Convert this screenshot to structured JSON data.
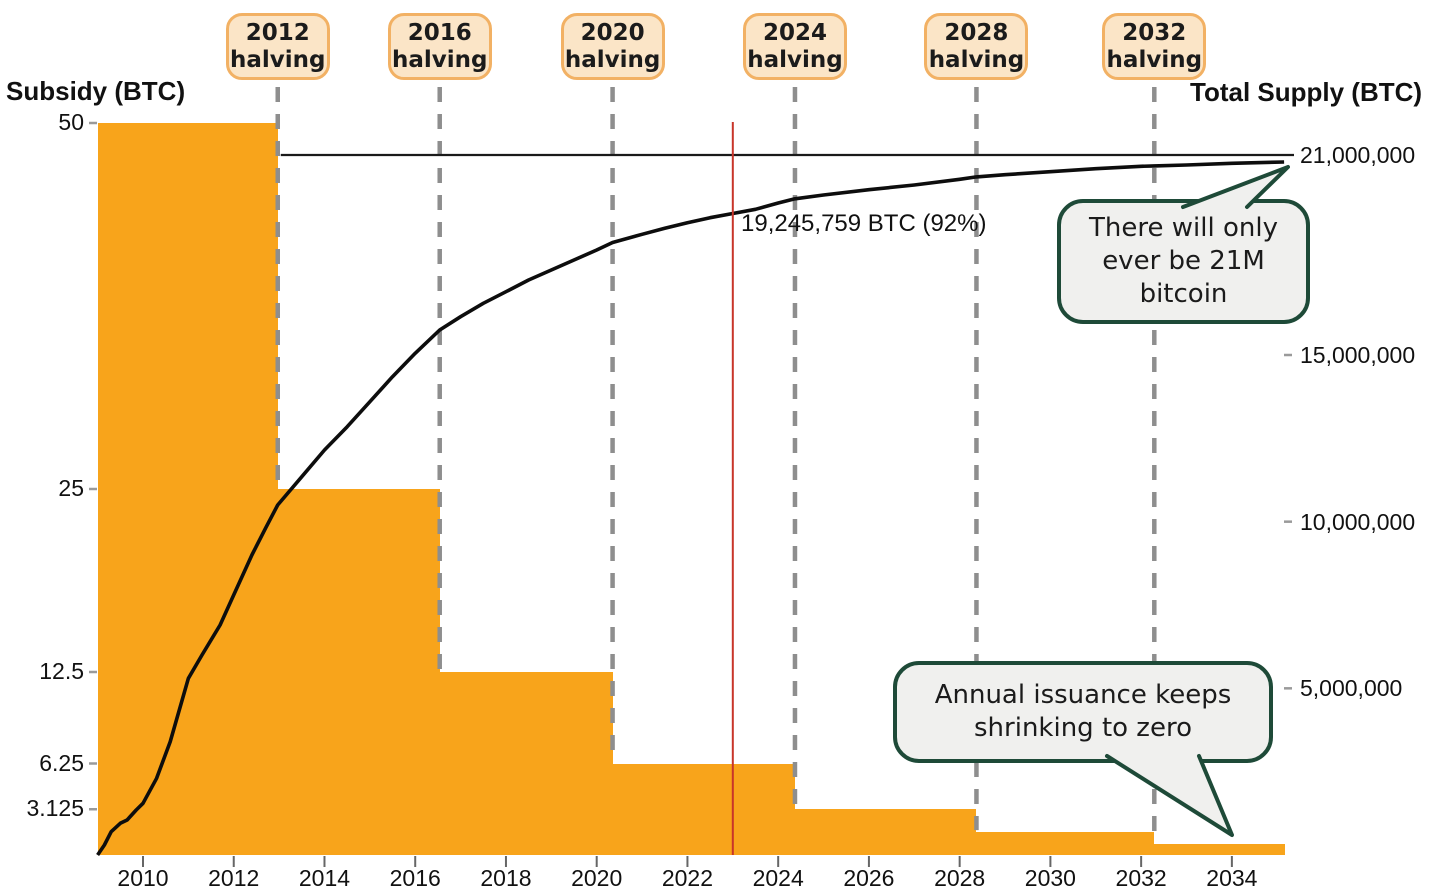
{
  "titles": {
    "left_axis": "Subsidy (BTC)",
    "right_axis": "Total Supply (BTC)"
  },
  "colors": {
    "bar": "#f8a41b",
    "pill_fill": "#fbe5c7",
    "pill_border": "#f2b164",
    "dashed_line": "#8e8e8e",
    "red_line": "#c8352a",
    "supply_curve": "#0d0d0d",
    "max_line": "#1a1a1a",
    "callout_fill": "#f0f0ee",
    "callout_border": "#1e4a38",
    "text": "#111111"
  },
  "callouts": [
    {
      "lines": [
        "There will only",
        "ever be 21M",
        "bitcoin"
      ]
    },
    {
      "lines": [
        "Annual issuance keeps",
        "shrinking to zero"
      ]
    }
  ],
  "chart_data": {
    "type": "bar+line",
    "title": "",
    "x_axis": {
      "ticks": [
        2010,
        2012,
        2014,
        2016,
        2018,
        2020,
        2022,
        2024,
        2026,
        2028,
        2030,
        2032,
        2034
      ],
      "range": [
        2009,
        2035.2
      ],
      "grid": false
    },
    "left_axis": {
      "label": "Subsidy (BTC)",
      "ticks": [
        "50",
        "25",
        "12.5",
        "6.25",
        "3.125"
      ],
      "tick_values": [
        50,
        25,
        12.5,
        6.25,
        3.125
      ],
      "range": [
        0,
        50
      ]
    },
    "right_axis": {
      "label": "Total Supply (BTC)",
      "ticks": [
        {
          "label": "21,000,000",
          "value_m": 21
        },
        {
          "label": "15,000,000",
          "value_m": 15
        },
        {
          "label": "10,000,000",
          "value_m": 10
        },
        {
          "label": "5,000,000",
          "value_m": 5
        }
      ],
      "range_m": [
        0,
        21
      ],
      "max_supply_line_m": 21
    },
    "subsidy_eras": [
      {
        "start_year": 2009.0,
        "end_year": 2012.97,
        "subsidy_btc": 50
      },
      {
        "start_year": 2012.97,
        "end_year": 2016.54,
        "subsidy_btc": 25
      },
      {
        "start_year": 2016.54,
        "end_year": 2020.35,
        "subsidy_btc": 12.5
      },
      {
        "start_year": 2020.35,
        "end_year": 2024.37,
        "subsidy_btc": 6.25
      },
      {
        "start_year": 2024.37,
        "end_year": 2028.37,
        "subsidy_btc": 3.125
      },
      {
        "start_year": 2028.37,
        "end_year": 2032.29,
        "subsidy_btc": 1.5625
      },
      {
        "start_year": 2032.29,
        "end_year": 2035.17,
        "subsidy_btc": 0.78125
      }
    ],
    "halvings": [
      {
        "year": "2012",
        "word": "halving",
        "x_year": 2012.97
      },
      {
        "year": "2016",
        "word": "halving",
        "x_year": 2016.54
      },
      {
        "year": "2020",
        "word": "halving",
        "x_year": 2020.35
      },
      {
        "year": "2024",
        "word": "halving",
        "x_year": 2024.37
      },
      {
        "year": "2028",
        "word": "halving",
        "x_year": 2028.37
      },
      {
        "year": "2032",
        "word": "halving",
        "x_year": 2032.29
      }
    ],
    "current_marker": {
      "x_year": 2023.0,
      "label": "19,245,759 BTC (92%)",
      "supply_btc": 19245759,
      "supply_m": 19.246
    },
    "supply_curve_year_mbtc": [
      [
        2009.0,
        0
      ],
      [
        2009.15,
        0.3
      ],
      [
        2009.3,
        0.7
      ],
      [
        2009.5,
        0.95
      ],
      [
        2009.65,
        1.05
      ],
      [
        2009.85,
        1.35
      ],
      [
        2010.0,
        1.55
      ],
      [
        2010.3,
        2.3
      ],
      [
        2010.6,
        3.4
      ],
      [
        2011.0,
        5.3
      ],
      [
        2011.3,
        6.0
      ],
      [
        2011.7,
        6.9
      ],
      [
        2012.0,
        7.8
      ],
      [
        2012.4,
        9.0
      ],
      [
        2012.7,
        9.8
      ],
      [
        2012.97,
        10.5
      ],
      [
        2013.5,
        11.35
      ],
      [
        2014.0,
        12.15
      ],
      [
        2014.5,
        12.85
      ],
      [
        2015.0,
        13.6
      ],
      [
        2015.5,
        14.35
      ],
      [
        2016.0,
        15.05
      ],
      [
        2016.54,
        15.75
      ],
      [
        2017.0,
        16.15
      ],
      [
        2017.5,
        16.55
      ],
      [
        2018.0,
        16.9
      ],
      [
        2018.5,
        17.25
      ],
      [
        2019.0,
        17.55
      ],
      [
        2019.5,
        17.85
      ],
      [
        2020.0,
        18.15
      ],
      [
        2020.35,
        18.375
      ],
      [
        2021.0,
        18.62
      ],
      [
        2021.5,
        18.8
      ],
      [
        2022.0,
        18.97
      ],
      [
        2022.5,
        19.12
      ],
      [
        2023.0,
        19.246
      ],
      [
        2023.5,
        19.37
      ],
      [
        2024.0,
        19.56
      ],
      [
        2024.37,
        19.6875
      ],
      [
        2025.0,
        19.8
      ],
      [
        2026.0,
        19.96
      ],
      [
        2027.0,
        20.1
      ],
      [
        2028.0,
        20.27
      ],
      [
        2028.37,
        20.344
      ],
      [
        2029.0,
        20.41
      ],
      [
        2030.0,
        20.5
      ],
      [
        2031.0,
        20.59
      ],
      [
        2032.0,
        20.66
      ],
      [
        2032.29,
        20.672
      ],
      [
        2033.0,
        20.7
      ],
      [
        2034.0,
        20.75
      ],
      [
        2035.15,
        20.79
      ]
    ]
  }
}
